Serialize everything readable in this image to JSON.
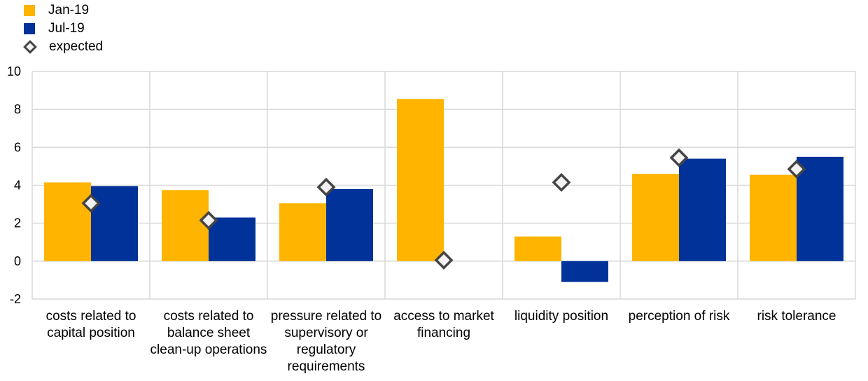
{
  "chart_data": {
    "type": "bar",
    "categories": [
      "costs related to capital position",
      "costs related to balance sheet clean-up operations",
      "pressure related to supervisory or regulatory requirements",
      "access to market financing",
      "liquidity position",
      "perception of risk",
      "risk tolerance"
    ],
    "series": [
      {
        "name": "Jan-19",
        "kind": "bar",
        "color": "#FFB400",
        "values": [
          4.15,
          3.75,
          3.05,
          8.55,
          1.3,
          4.6,
          4.55
        ]
      },
      {
        "name": "Jul-19",
        "kind": "bar",
        "color": "#003299",
        "values": [
          3.95,
          2.3,
          3.8,
          0.0,
          -1.1,
          5.4,
          5.5
        ]
      },
      {
        "name": "expected",
        "kind": "marker",
        "color": "#f2f2f2",
        "values": [
          3.05,
          2.15,
          3.9,
          0.05,
          4.15,
          5.45,
          4.85
        ]
      }
    ],
    "yticks": [
      -2,
      0,
      2,
      4,
      6,
      8,
      10
    ],
    "ylim": [
      -2,
      10
    ],
    "grid": true,
    "legend_position": "top-left"
  }
}
